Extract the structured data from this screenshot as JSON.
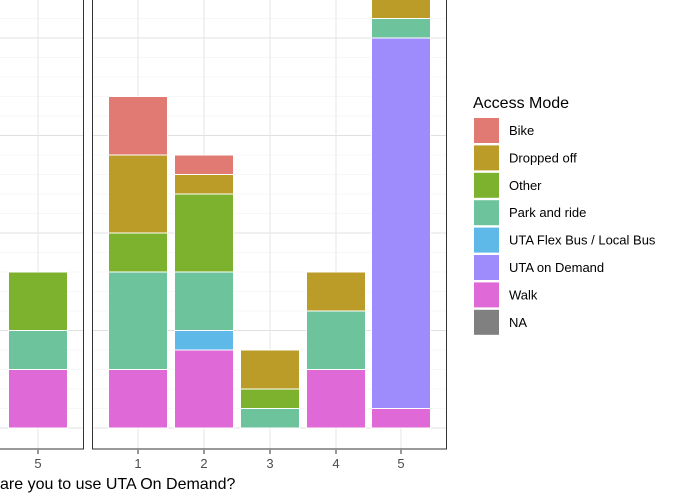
{
  "chart_data": {
    "type": "bar",
    "stacked": true,
    "title": "",
    "xlabel": "are you to use UTA On Demand?",
    "ylabel": "",
    "grid": true,
    "legend": {
      "title": "Access Mode",
      "placement": "right",
      "entries": [
        {
          "name": "Bike",
          "color": "#E07A72"
        },
        {
          "name": "Dropped off",
          "color": "#BC9C28"
        },
        {
          "name": "Other",
          "color": "#7DB22E"
        },
        {
          "name": "Park and ride",
          "color": "#6CC39C"
        },
        {
          "name": "UTA Flex Bus / Local Bus",
          "color": "#5EB8E8"
        },
        {
          "name": "UTA on Demand",
          "color": "#9E8CFC"
        },
        {
          "name": "Walk",
          "color": "#E069D8"
        },
        {
          "name": "NA",
          "color": "#808080"
        }
      ]
    },
    "panels": [
      {
        "categories": [
          "5"
        ],
        "ylim": [
          0,
          8
        ],
        "stacks": [
          {
            "category": "5",
            "segments": [
              {
                "series": "Walk",
                "value": 3
              },
              {
                "series": "Park and ride",
                "value": 2
              },
              {
                "series": "Other",
                "value": 3
              }
            ]
          }
        ]
      },
      {
        "categories": [
          "1",
          "2",
          "3",
          "4",
          "5"
        ],
        "ylim": [
          0,
          22
        ],
        "stacks": [
          {
            "category": "1",
            "segments": [
              {
                "series": "Walk",
                "value": 3
              },
              {
                "series": "Park and ride",
                "value": 5
              },
              {
                "series": "Other",
                "value": 2
              },
              {
                "series": "Dropped off",
                "value": 4
              },
              {
                "series": "Bike",
                "value": 3
              }
            ]
          },
          {
            "category": "2",
            "segments": [
              {
                "series": "Walk",
                "value": 4
              },
              {
                "series": "UTA Flex Bus / Local Bus",
                "value": 1
              },
              {
                "series": "Park and ride",
                "value": 3
              },
              {
                "series": "Other",
                "value": 4
              },
              {
                "series": "Dropped off",
                "value": 1
              },
              {
                "series": "Bike",
                "value": 1
              }
            ]
          },
          {
            "category": "3",
            "segments": [
              {
                "series": "Park and ride",
                "value": 1
              },
              {
                "series": "Other",
                "value": 1
              },
              {
                "series": "Dropped off",
                "value": 2
              }
            ]
          },
          {
            "category": "4",
            "segments": [
              {
                "series": "Walk",
                "value": 3
              },
              {
                "series": "Park and ride",
                "value": 3
              },
              {
                "series": "Dropped off",
                "value": 2
              }
            ]
          },
          {
            "category": "5",
            "segments": [
              {
                "series": "Walk",
                "value": 1
              },
              {
                "series": "UTA on Demand",
                "value": 19
              },
              {
                "series": "Park and ride",
                "value": 1
              },
              {
                "series": "Dropped off",
                "value": 1
              }
            ]
          }
        ]
      }
    ]
  }
}
